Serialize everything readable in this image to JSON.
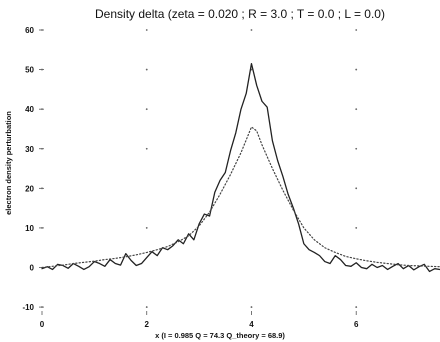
{
  "chart_data": {
    "type": "line",
    "title": "Density delta (zeta = 0.020 ; R = 3.0 ; T = 0.0 ; L = 0.0)",
    "xlabel": "x     (I = 0.985  Q = 74.3  Q_theory = 68.9)",
    "ylabel": "electron density perturbation",
    "xlim": [
      0,
      7.6
    ],
    "ylim": [
      -12,
      60
    ],
    "x_ticks": [
      "0",
      "2",
      "4",
      "6"
    ],
    "y_ticks": [
      "-10",
      "0",
      "10",
      "20",
      "30",
      "40",
      "50",
      "60"
    ],
    "grid": false,
    "series": [
      {
        "style": "solid",
        "color": "#222222",
        "x": [
          0.0,
          0.1,
          0.2,
          0.3,
          0.4,
          0.5,
          0.6,
          0.7,
          0.8,
          0.9,
          1.0,
          1.1,
          1.2,
          1.3,
          1.4,
          1.5,
          1.6,
          1.7,
          1.8,
          1.9,
          2.0,
          2.1,
          2.2,
          2.3,
          2.4,
          2.5,
          2.6,
          2.7,
          2.8,
          2.9,
          3.0,
          3.1,
          3.2,
          3.3,
          3.4,
          3.5,
          3.6,
          3.7,
          3.8,
          3.9,
          4.0,
          4.1,
          4.2,
          4.3,
          4.4,
          4.5,
          4.6,
          4.7,
          4.8,
          4.9,
          5.0,
          5.1,
          5.2,
          5.3,
          5.4,
          5.5,
          5.6,
          5.7,
          5.8,
          5.9,
          6.0,
          6.1,
          6.2,
          6.3,
          6.4,
          6.5,
          6.6,
          6.7,
          6.8,
          6.9,
          7.0,
          7.1,
          7.2,
          7.3,
          7.4,
          7.5,
          7.6
        ],
        "y": [
          -0.3,
          0.2,
          -0.5,
          0.8,
          0.5,
          -0.2,
          1.0,
          0.3,
          -0.5,
          0.2,
          1.5,
          1.0,
          0.3,
          2.0,
          1.0,
          0.6,
          3.5,
          1.8,
          0.5,
          1.0,
          2.5,
          4.0,
          3.0,
          5.0,
          4.5,
          5.5,
          7.0,
          6.0,
          8.5,
          7.0,
          11.0,
          13.5,
          13.0,
          19.0,
          22.0,
          24.0,
          29.5,
          34.0,
          40.0,
          44.0,
          51.5,
          46.0,
          42.0,
          40.5,
          32.0,
          27.0,
          23.0,
          18.5,
          15.0,
          11.0,
          6.0,
          4.5,
          3.8,
          3.0,
          1.5,
          1.0,
          3.0,
          2.0,
          0.5,
          0.3,
          1.2,
          0.0,
          -0.3,
          0.8,
          0.0,
          0.5,
          -0.5,
          0.3,
          1.0,
          -0.3,
          0.5,
          -0.6,
          0.2,
          0.8,
          -1.0,
          -0.3,
          -0.5
        ]
      },
      {
        "style": "dotted",
        "color": "#444444",
        "x": [
          0.0,
          0.2,
          0.4,
          0.6,
          0.8,
          1.0,
          1.2,
          1.4,
          1.6,
          1.8,
          2.0,
          2.2,
          2.4,
          2.6,
          2.8,
          3.0,
          3.2,
          3.4,
          3.6,
          3.8,
          4.0,
          4.1,
          4.2,
          4.4,
          4.6,
          4.8,
          5.0,
          5.2,
          5.4,
          5.6,
          5.8,
          6.0,
          6.2,
          6.4,
          6.6,
          6.8,
          7.0,
          7.2,
          7.4,
          7.6
        ],
        "y": [
          0.0,
          0.3,
          0.6,
          1.0,
          1.3,
          1.6,
          2.0,
          2.3,
          2.7,
          3.2,
          3.8,
          4.5,
          5.3,
          6.5,
          8.0,
          10.5,
          14.0,
          18.5,
          23.5,
          29.0,
          35.5,
          34.5,
          31.0,
          25.0,
          19.5,
          14.5,
          10.0,
          7.0,
          5.0,
          3.8,
          2.8,
          2.2,
          1.7,
          1.3,
          1.0,
          0.7,
          0.5,
          0.4,
          0.3,
          0.2
        ]
      }
    ],
    "reference_dots": [
      {
        "x": 0,
        "y": 60
      },
      {
        "x": 2,
        "y": 60
      },
      {
        "x": 4,
        "y": 60
      },
      {
        "x": 6,
        "y": 60
      },
      {
        "x": 0,
        "y": 50
      },
      {
        "x": 2,
        "y": 50
      },
      {
        "x": 4,
        "y": 50
      },
      {
        "x": 6,
        "y": 50
      },
      {
        "x": 0,
        "y": 40
      },
      {
        "x": 2,
        "y": 40
      },
      {
        "x": 6,
        "y": 40
      },
      {
        "x": 0,
        "y": 30
      },
      {
        "x": 2,
        "y": 30
      },
      {
        "x": 6,
        "y": 30
      },
      {
        "x": 0,
        "y": 20
      },
      {
        "x": 6,
        "y": 20
      },
      {
        "x": 0,
        "y": 10
      },
      {
        "x": 2,
        "y": 10
      },
      {
        "x": 6,
        "y": 10
      },
      {
        "x": 0,
        "y": -10
      },
      {
        "x": 2,
        "y": -10
      },
      {
        "x": 4,
        "y": -10
      },
      {
        "x": 6,
        "y": -10
      }
    ]
  }
}
